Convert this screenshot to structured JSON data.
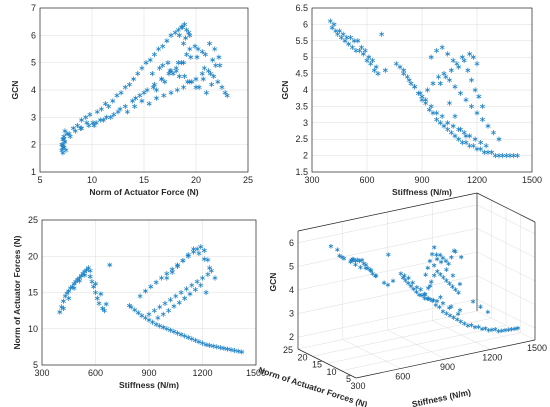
{
  "colors": {
    "marker": "#1f83c6",
    "grid": "#dcdcdc",
    "axis": "#262626"
  },
  "chart_data": [
    {
      "type": "scatter",
      "panel": "top-left",
      "title": "",
      "xlabel": "Norm of Actuator Force (N)",
      "ylabel": "GCN",
      "xlim": [
        5,
        25
      ],
      "ylim": [
        1,
        7
      ],
      "xticks": [
        "5",
        "10",
        "15",
        "20",
        "25"
      ],
      "yticks": [
        "1",
        "2",
        "3",
        "4",
        "5",
        "6",
        "7"
      ],
      "grid": true,
      "marker": "asterisk",
      "x": [
        7.2,
        7.1,
        7.3,
        7.2,
        7.4,
        7.2,
        7.3,
        7.6,
        7.1,
        7.5,
        7.3,
        7.2,
        7.4,
        7.8,
        8.2,
        8.6,
        9.0,
        9.4,
        9.8,
        10.1,
        10.5,
        10.9,
        11.3,
        11.6,
        12.0,
        12.4,
        12.8,
        13.2,
        13.6,
        14.0,
        14.4,
        14.8,
        15.2,
        15.6,
        16.0,
        16.4,
        16.8,
        17.2,
        17.6,
        18.0,
        18.3,
        18.6,
        18.9,
        19.1,
        19.3,
        19.0,
        18.7,
        18.4,
        18.8,
        19.4,
        7.9,
        8.4,
        8.9,
        9.5,
        10.2,
        10.8,
        11.4,
        12.1,
        12.7,
        13.4,
        14.1,
        14.8,
        15.5,
        16.2,
        16.9,
        17.6,
        18.2,
        18.8,
        19.4,
        20.0,
        20.6,
        21.2,
        21.7,
        22.1,
        22.5,
        22.8,
        23.0,
        22.3,
        21.6,
        20.9,
        20.2,
        19.5,
        18.8,
        18.1,
        17.4,
        16.7,
        16.0,
        15.3,
        14.6,
        13.9,
        13.2,
        12.5,
        11.8,
        11.1,
        10.4,
        9.7,
        9.0,
        15.8,
        16.5,
        17.3,
        18.1,
        18.9,
        19.6,
        20.3,
        21.0,
        21.5,
        20.8,
        20.1,
        19.4,
        18.6,
        17.8,
        17.0,
        16.2,
        21.3,
        21.8,
        22.2,
        21.9,
        21.4,
        20.7,
        20.0,
        19.2,
        18.4,
        17.6,
        16.8,
        14.2,
        15.0,
        15.9,
        16.7,
        17.5,
        18.3,
        19.1,
        19.9,
        20.6
      ],
      "y": [
        1.7,
        1.8,
        1.9,
        2.0,
        2.1,
        2.2,
        2.3,
        2.4,
        2.0,
        1.8,
        2.2,
        1.9,
        2.5,
        2.4,
        2.6,
        2.7,
        2.9,
        3.0,
        3.1,
        2.8,
        3.2,
        3.3,
        3.5,
        3.4,
        3.6,
        3.8,
        3.9,
        4.1,
        4.2,
        4.4,
        4.6,
        4.8,
        5.0,
        5.1,
        5.3,
        5.5,
        5.6,
        5.8,
        6.0,
        6.1,
        6.2,
        6.3,
        6.4,
        6.2,
        6.1,
        5.9,
        6.3,
        6.0,
        5.7,
        6.0,
        2.3,
        2.5,
        2.6,
        2.8,
        2.7,
        2.9,
        3.0,
        3.1,
        3.3,
        3.2,
        3.4,
        3.6,
        3.5,
        3.7,
        3.8,
        3.9,
        4.0,
        4.1,
        4.3,
        4.4,
        4.6,
        4.7,
        4.5,
        4.3,
        4.1,
        3.9,
        3.8,
        4.9,
        5.1,
        5.3,
        5.5,
        5.2,
        5.0,
        4.8,
        4.6,
        4.4,
        4.2,
        4.0,
        3.8,
        3.6,
        3.4,
        3.2,
        3.0,
        2.9,
        2.8,
        2.7,
        2.6,
        4.6,
        4.8,
        5.0,
        4.7,
        4.5,
        4.3,
        4.1,
        3.9,
        4.2,
        4.8,
        5.2,
        5.5,
        5.0,
        4.6,
        4.3,
        4.0,
        5.7,
        5.5,
        5.2,
        4.9,
        4.6,
        4.4,
        4.1,
        4.3,
        4.5,
        4.7,
        4.9,
        3.7,
        3.9,
        4.1,
        4.4,
        4.7,
        5.0,
        5.3,
        5.6,
        5.4
      ]
    },
    {
      "type": "scatter",
      "panel": "top-right",
      "title": "",
      "xlabel": "Stiffness (N/m)",
      "ylabel": "GCN",
      "xlim": [
        300,
        1500
      ],
      "ylim": [
        1.5,
        6.5
      ],
      "xticks": [
        "300",
        "600",
        "900",
        "1200",
        "1500"
      ],
      "yticks": [
        "1.5",
        "2",
        "2.5",
        "3",
        "3.5",
        "4",
        "4.5",
        "5",
        "5.5",
        "6",
        "6.5"
      ],
      "grid": true,
      "marker": "asterisk",
      "x": [
        410,
        430,
        450,
        470,
        490,
        510,
        530,
        550,
        570,
        590,
        610,
        630,
        650,
        420,
        440,
        460,
        480,
        500,
        520,
        540,
        560,
        580,
        600,
        620,
        640,
        660,
        680,
        400,
        700,
        760,
        780,
        800,
        820,
        840,
        860,
        880,
        900,
        920,
        940,
        960,
        980,
        1000,
        1020,
        1040,
        1060,
        1080,
        1100,
        1120,
        1140,
        1160,
        1180,
        1200,
        1220,
        1240,
        1260,
        1280,
        1300,
        1320,
        1340,
        1360,
        1380,
        1400,
        1420,
        800,
        830,
        860,
        890,
        920,
        950,
        980,
        1010,
        1040,
        1070,
        1100,
        1130,
        1160,
        1190,
        1220,
        1250,
        950,
        980,
        1010,
        1040,
        1070,
        1100,
        1130,
        1160,
        1180,
        1200,
        1000,
        1030,
        1060,
        1090,
        1120,
        1150,
        1170,
        1190,
        1210,
        1230,
        900,
        930,
        960,
        990,
        1020,
        1050,
        1080,
        1110,
        1140,
        1170,
        1200,
        1230,
        1260,
        1290,
        1320,
        1050,
        1080,
        1110,
        1140
      ],
      "y": [
        5.9,
        5.8,
        5.8,
        5.7,
        5.6,
        5.6,
        5.5,
        5.5,
        5.3,
        5.2,
        5.0,
        4.9,
        4.7,
        6.0,
        5.7,
        5.6,
        5.5,
        5.4,
        5.3,
        5.2,
        5.2,
        5.1,
        4.9,
        4.8,
        4.6,
        4.5,
        5.7,
        6.1,
        4.6,
        4.8,
        4.7,
        4.6,
        4.4,
        4.2,
        4.1,
        3.9,
        3.7,
        3.6,
        3.4,
        3.3,
        3.1,
        3.0,
        2.9,
        2.8,
        2.7,
        2.6,
        2.5,
        2.4,
        2.4,
        2.3,
        2.3,
        2.2,
        2.2,
        2.1,
        2.1,
        2.1,
        2.0,
        2.0,
        2.0,
        2.0,
        2.0,
        2.0,
        2.0,
        4.5,
        4.3,
        4.1,
        3.9,
        3.7,
        3.5,
        3.3,
        3.2,
        3.0,
        2.9,
        2.8,
        2.7,
        2.6,
        2.5,
        2.4,
        2.3,
        5.0,
        5.2,
        5.3,
        5.1,
        4.9,
        4.7,
        4.9,
        5.1,
        5.0,
        4.8,
        4.2,
        4.4,
        4.6,
        4.8,
        5.0,
        4.6,
        4.3,
        4.0,
        3.8,
        3.5,
        3.8,
        4.0,
        4.2,
        4.4,
        4.5,
        4.3,
        4.1,
        3.9,
        3.7,
        3.5,
        3.3,
        3.1,
        2.9,
        2.7,
        2.5,
        3.6,
        3.2,
        2.8,
        2.6
      ]
    },
    {
      "type": "scatter",
      "panel": "bottom-left",
      "title": "",
      "xlabel": "Stiffness (N/m)",
      "ylabel": "Norm of Actuator Forces (N)",
      "xlim": [
        300,
        1500
      ],
      "ylim": [
        5,
        25
      ],
      "xticks": [
        "300",
        "600",
        "900",
        "1200",
        "1500"
      ],
      "yticks": [
        "5",
        "10",
        "15",
        "20",
        "25"
      ],
      "grid": true,
      "marker": "asterisk",
      "x": [
        400,
        410,
        420,
        430,
        440,
        450,
        460,
        470,
        480,
        490,
        500,
        510,
        520,
        530,
        540,
        550,
        560,
        570,
        580,
        590,
        600,
        610,
        620,
        630,
        640,
        650,
        660,
        680,
        420,
        450,
        480,
        510,
        540,
        570,
        600,
        790,
        800,
        820,
        840,
        860,
        880,
        900,
        920,
        940,
        960,
        980,
        1000,
        1020,
        1040,
        1060,
        1080,
        1100,
        1120,
        1140,
        1160,
        1180,
        1200,
        1220,
        1240,
        1260,
        1280,
        1300,
        1320,
        1340,
        1360,
        1380,
        1400,
        1420,
        850,
        880,
        910,
        940,
        970,
        1000,
        1030,
        1060,
        1090,
        1120,
        1150,
        1170,
        1190,
        1210,
        1230,
        1250,
        950,
        980,
        1010,
        1040,
        1070,
        1100,
        1130,
        1160,
        1190,
        1220,
        1000,
        1030,
        1060,
        1090,
        1120,
        1150,
        1180,
        1210,
        1240,
        1270,
        900,
        930,
        960,
        990,
        1020,
        1050,
        1080,
        1110,
        1140,
        1170,
        1200,
        1230
      ],
      "y": [
        12.3,
        13.0,
        13.8,
        14.5,
        14.9,
        15.2,
        15.6,
        15.8,
        16.2,
        16.5,
        16.8,
        17.0,
        17.3,
        17.6,
        17.9,
        18.1,
        18.4,
        17.2,
        16.5,
        15.8,
        15.0,
        14.2,
        13.5,
        14.8,
        12.8,
        12.5,
        13.4,
        18.8,
        12.8,
        14.2,
        15.6,
        16.6,
        17.4,
        18.0,
        16.2,
        13.2,
        13.0,
        12.6,
        12.2,
        11.8,
        11.5,
        11.2,
        10.9,
        10.6,
        10.4,
        10.2,
        10.0,
        9.8,
        9.6,
        9.4,
        9.2,
        9.0,
        8.8,
        8.6,
        8.4,
        8.2,
        8.0,
        7.8,
        7.7,
        7.6,
        7.5,
        7.4,
        7.3,
        7.2,
        7.1,
        7.0,
        6.9,
        6.8,
        14.5,
        15.2,
        15.8,
        16.4,
        17.0,
        17.6,
        18.2,
        18.8,
        19.4,
        20.0,
        20.6,
        21.0,
        21.3,
        20.8,
        19.5,
        18.0,
        11.5,
        12.0,
        12.5,
        13.1,
        13.6,
        14.2,
        14.8,
        15.4,
        16.0,
        15.0,
        17.0,
        17.8,
        18.6,
        19.4,
        20.2,
        21.0,
        20.4,
        19.6,
        18.4,
        17.0,
        12.0,
        12.5,
        13.0,
        13.5,
        14.0,
        14.5,
        15.0,
        15.5,
        16.0,
        16.5,
        17.0,
        17.5
      ]
    },
    {
      "type": "scatter",
      "panel": "bottom-right",
      "projection": "3d",
      "title": "",
      "xlabel": "Stiffness (N/m)",
      "ylabel": "Norm of Actuator Forces (N)",
      "zlabel": "GCN",
      "xlim": [
        300,
        1500
      ],
      "ylim": [
        5,
        25
      ],
      "zlim": [
        1.5,
        6.5
      ],
      "xticks": [
        "300",
        "600",
        "900",
        "1200",
        "1500"
      ],
      "yticks": [
        "5",
        "10",
        "15",
        "20",
        "25"
      ],
      "zticks": [
        "2",
        "3",
        "4",
        "5",
        "6"
      ],
      "grid": true,
      "marker": "asterisk",
      "x": [
        410,
        430,
        450,
        470,
        490,
        510,
        530,
        550,
        570,
        590,
        610,
        630,
        650,
        420,
        440,
        460,
        480,
        500,
        520,
        540,
        560,
        580,
        600,
        620,
        640,
        660,
        680,
        400,
        700,
        760,
        780,
        800,
        820,
        840,
        860,
        880,
        900,
        920,
        940,
        960,
        980,
        1000,
        1020,
        1040,
        1060,
        1080,
        1100,
        1120,
        1140,
        1160,
        1180,
        1200,
        1220,
        1240,
        1260,
        1280,
        1300,
        1320,
        1340,
        1360,
        1380,
        1400,
        1420,
        800,
        830,
        860,
        890,
        920,
        950,
        980,
        1010,
        1040,
        1070,
        1100,
        1130,
        1160,
        1190,
        1220,
        1250,
        950,
        980,
        1010,
        1040,
        1070,
        1100,
        1130,
        1160,
        1180,
        1200,
        1000,
        1030,
        1060,
        1090,
        1120,
        1150,
        1170,
        1190,
        1210,
        1230,
        900,
        930,
        960,
        990,
        1020,
        1050,
        1080,
        1110,
        1140,
        1170,
        1200,
        1230,
        1260,
        1290,
        1320,
        1050,
        1080,
        1110,
        1140
      ],
      "y": [
        12.3,
        13.0,
        13.8,
        14.5,
        14.9,
        15.2,
        15.6,
        15.8,
        16.2,
        16.5,
        16.8,
        17.0,
        17.3,
        17.6,
        17.9,
        18.1,
        18.4,
        17.2,
        16.5,
        15.8,
        15.0,
        14.2,
        13.5,
        14.8,
        12.8,
        12.5,
        13.4,
        18.8,
        12.8,
        13.2,
        13.0,
        12.6,
        12.2,
        11.8,
        11.5,
        11.2,
        10.9,
        10.6,
        10.4,
        10.2,
        10.0,
        9.8,
        9.6,
        9.4,
        9.2,
        9.0,
        8.8,
        8.6,
        8.4,
        8.2,
        8.0,
        7.8,
        7.7,
        7.6,
        7.5,
        7.4,
        7.3,
        7.2,
        7.1,
        7.0,
        6.9,
        6.8,
        6.8,
        14.5,
        15.2,
        15.8,
        16.4,
        17.0,
        17.6,
        18.2,
        18.8,
        19.4,
        20.0,
        20.6,
        21.0,
        21.3,
        20.8,
        19.5,
        18.0,
        11.5,
        12.0,
        12.5,
        13.1,
        13.6,
        14.2,
        14.8,
        15.4,
        16.0,
        15.0,
        17.0,
        17.8,
        18.6,
        19.4,
        20.2,
        21.0,
        20.4,
        19.6,
        18.4,
        17.0,
        12.0,
        12.5,
        13.0,
        13.5,
        14.0,
        14.5,
        15.0,
        15.5,
        16.0,
        16.5,
        17.0,
        17.5,
        14.0,
        13.0,
        12.0,
        18.0,
        16.0,
        14.5,
        13.0
      ],
      "z": [
        5.9,
        5.8,
        5.8,
        5.7,
        5.6,
        5.6,
        5.5,
        5.5,
        5.3,
        5.2,
        5.0,
        4.9,
        4.7,
        6.0,
        5.7,
        5.6,
        5.5,
        5.4,
        5.3,
        5.2,
        5.2,
        5.1,
        4.9,
        4.8,
        4.6,
        4.5,
        5.7,
        6.1,
        4.6,
        4.8,
        4.7,
        4.6,
        4.4,
        4.2,
        4.1,
        3.9,
        3.7,
        3.6,
        3.4,
        3.3,
        3.1,
        3.0,
        2.9,
        2.8,
        2.7,
        2.6,
        2.5,
        2.4,
        2.4,
        2.3,
        2.3,
        2.2,
        2.2,
        2.1,
        2.1,
        2.1,
        2.0,
        2.0,
        2.0,
        2.0,
        2.0,
        2.0,
        2.0,
        4.5,
        4.3,
        4.1,
        3.9,
        3.7,
        3.5,
        3.3,
        3.2,
        3.0,
        2.9,
        2.8,
        2.7,
        2.6,
        2.5,
        2.4,
        2.3,
        5.0,
        5.2,
        5.3,
        5.1,
        4.9,
        4.7,
        4.9,
        5.1,
        5.0,
        4.8,
        4.2,
        4.4,
        4.6,
        4.8,
        5.0,
        4.6,
        4.3,
        4.0,
        3.8,
        3.5,
        3.8,
        4.0,
        4.2,
        4.4,
        4.5,
        4.3,
        4.1,
        3.9,
        3.7,
        3.5,
        3.3,
        3.1,
        2.9,
        2.7,
        2.5,
        3.6,
        3.2,
        2.8,
        2.6
      ]
    }
  ]
}
